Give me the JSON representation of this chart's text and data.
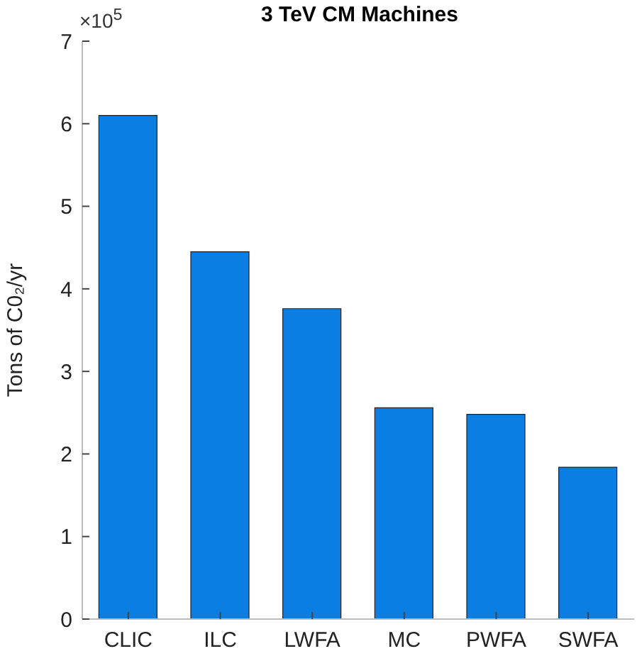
{
  "chart_data": {
    "type": "bar",
    "title": "3 TeV CM Machines",
    "ylabel": "Tons of C0₂/yr",
    "annotations": [
      "×10$^{5}$"
    ],
    "categories": [
      "CLIC",
      "ILC",
      "LWFA",
      "MC",
      "PWFA",
      "SWFA"
    ],
    "values": [
      6.1,
      4.45,
      3.76,
      2.56,
      2.48,
      1.84
    ],
    "color": "#0a7ee3",
    "ylim": [
      0,
      7
    ],
    "yticks": [
      0,
      1,
      2,
      3,
      4,
      5,
      6,
      7
    ],
    "grid": false
  }
}
